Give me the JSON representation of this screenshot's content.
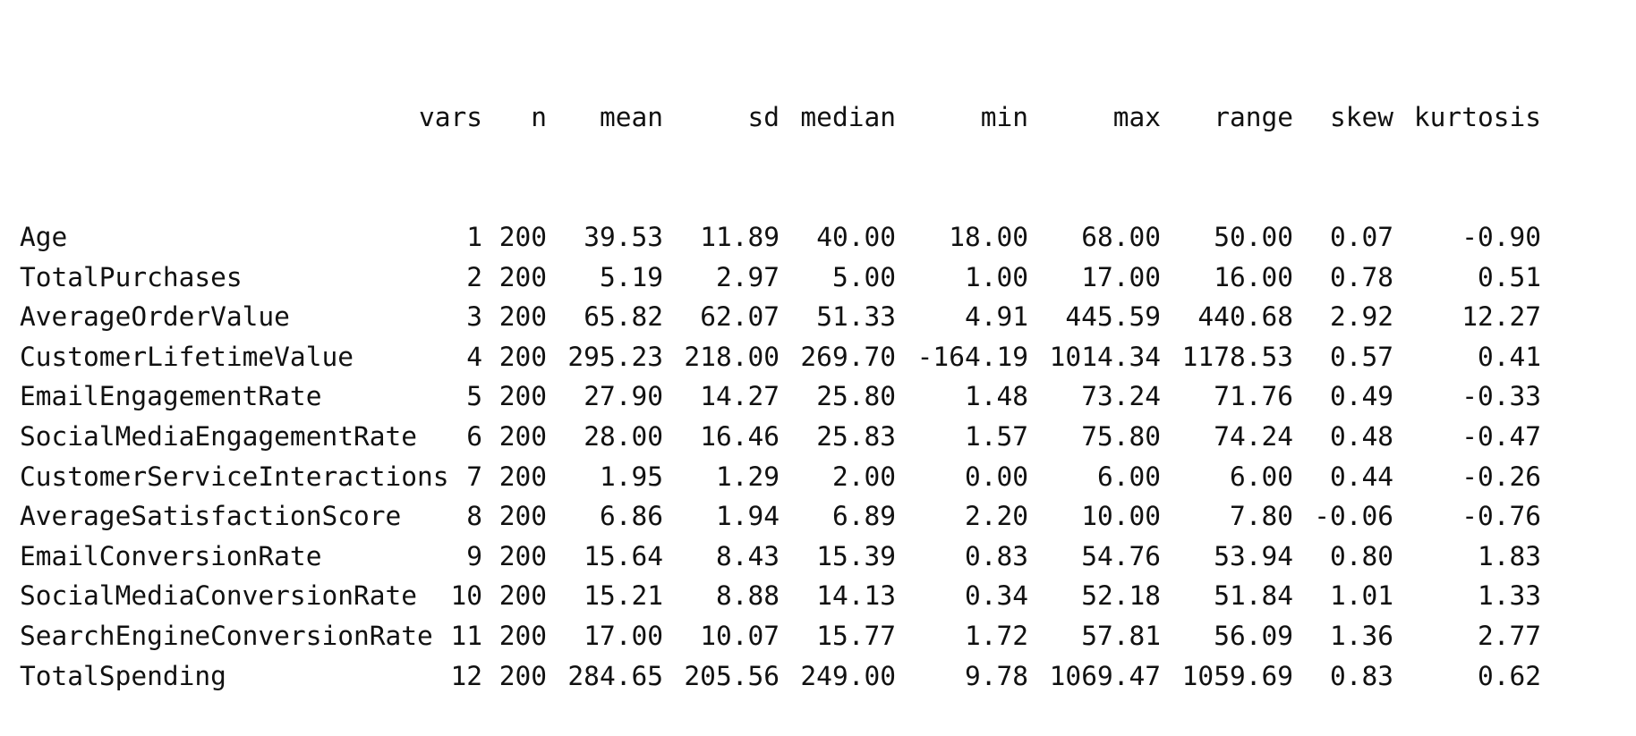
{
  "table": {
    "headers": [
      "",
      "vars",
      "n",
      "mean",
      "sd",
      "median",
      "min",
      "max",
      "range",
      "skew",
      "kurtosis"
    ],
    "rows": [
      [
        "Age",
        "1",
        "200",
        "39.53",
        "11.89",
        "40.00",
        "18.00",
        "68.00",
        "50.00",
        "0.07",
        "-0.90"
      ],
      [
        "TotalPurchases",
        "2",
        "200",
        "5.19",
        "2.97",
        "5.00",
        "1.00",
        "17.00",
        "16.00",
        "0.78",
        "0.51"
      ],
      [
        "AverageOrderValue",
        "3",
        "200",
        "65.82",
        "62.07",
        "51.33",
        "4.91",
        "445.59",
        "440.68",
        "2.92",
        "12.27"
      ],
      [
        "CustomerLifetimeValue",
        "4",
        "200",
        "295.23",
        "218.00",
        "269.70",
        "-164.19",
        "1014.34",
        "1178.53",
        "0.57",
        "0.41"
      ],
      [
        "EmailEngagementRate",
        "5",
        "200",
        "27.90",
        "14.27",
        "25.80",
        "1.48",
        "73.24",
        "71.76",
        "0.49",
        "-0.33"
      ],
      [
        "SocialMediaEngagementRate",
        "6",
        "200",
        "28.00",
        "16.46",
        "25.83",
        "1.57",
        "75.80",
        "74.24",
        "0.48",
        "-0.47"
      ],
      [
        "CustomerServiceInteractions",
        "7",
        "200",
        "1.95",
        "1.29",
        "2.00",
        "0.00",
        "6.00",
        "6.00",
        "0.44",
        "-0.26"
      ],
      [
        "AverageSatisfactionScore",
        "8",
        "200",
        "6.86",
        "1.94",
        "6.89",
        "2.20",
        "10.00",
        "7.80",
        "-0.06",
        "-0.76"
      ],
      [
        "EmailConversionRate",
        "9",
        "200",
        "15.64",
        "8.43",
        "15.39",
        "0.83",
        "54.76",
        "53.94",
        "0.80",
        "1.83"
      ],
      [
        "SocialMediaConversionRate",
        "10",
        "200",
        "15.21",
        "8.88",
        "14.13",
        "0.34",
        "52.18",
        "51.84",
        "1.01",
        "1.33"
      ],
      [
        "SearchEngineConversionRate",
        "11",
        "200",
        "17.00",
        "10.07",
        "15.77",
        "1.72",
        "57.81",
        "56.09",
        "1.36",
        "2.77"
      ],
      [
        "TotalSpending",
        "12",
        "200",
        "284.65",
        "205.56",
        "249.00",
        "9.78",
        "1069.47",
        "1059.69",
        "0.83",
        "0.62"
      ]
    ]
  }
}
